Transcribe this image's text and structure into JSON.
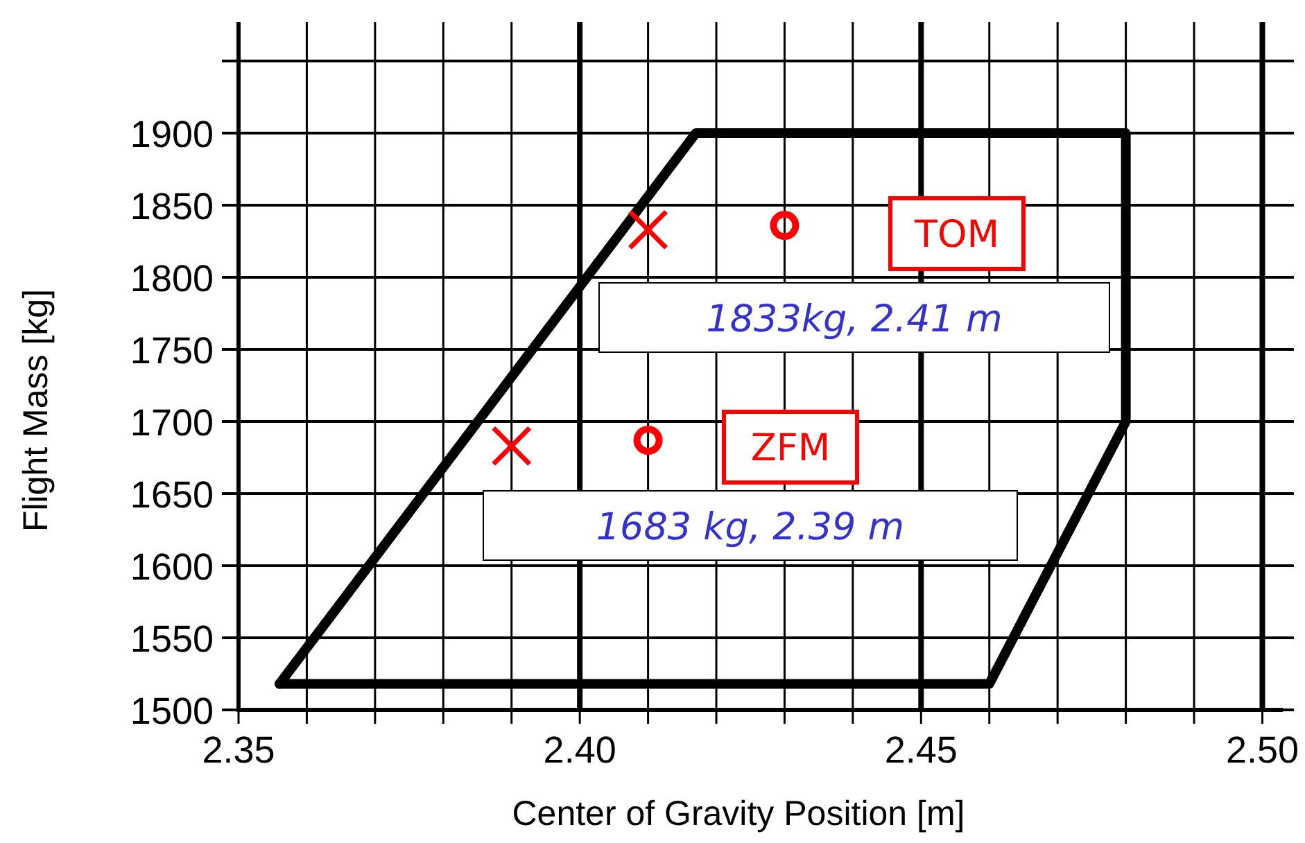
{
  "chart_data": {
    "type": "scatter",
    "xlabel": "Center of Gravity Position [m]",
    "ylabel": "Flight Mass [kg]",
    "xlim": [
      2.35,
      2.503
    ],
    "ylim": [
      1500,
      1950
    ],
    "xticks": [
      2.35,
      {
        "value": 2.36,
        "label": null
      },
      {
        "value": 2.37,
        "label": null
      },
      {
        "value": 2.38,
        "label": null
      },
      {
        "value": 2.39,
        "label": null
      },
      {
        "value": 2.4,
        "label": "2.40"
      },
      {
        "value": 2.41,
        "label": null
      },
      {
        "value": 2.42,
        "label": null
      },
      {
        "value": 2.43,
        "label": null
      },
      {
        "value": 2.44,
        "label": null
      },
      2.45,
      {
        "value": 2.46,
        "label": null
      },
      {
        "value": 2.47,
        "label": null
      },
      {
        "value": 2.48,
        "label": null
      },
      {
        "value": 2.49,
        "label": null
      },
      {
        "value": 2.5,
        "label": "2.50"
      }
    ],
    "yticks": [
      1500,
      1550,
      1600,
      1650,
      1700,
      1750,
      1800,
      1850,
      1900,
      {
        "value": 1950,
        "label": null
      }
    ],
    "grid": true,
    "series": [
      {
        "type": "line",
        "color": "#000000",
        "marker": "none",
        "x": [
          2.356,
          2.417,
          2.48,
          2.48
        ],
        "values": [
          1518,
          1900,
          1900,
          1700
        ]
      },
      {
        "type": "line",
        "color": "#000000",
        "marker": "none",
        "x": [
          2.356,
          2.46,
          2.48
        ],
        "values": [
          1518,
          1518,
          1700
        ]
      },
      {
        "color": "#ff0000",
        "marker": "cross",
        "x": [
          2.41,
          2.39
        ],
        "values": [
          1833,
          1683
        ]
      },
      {
        "color": "#ff0000",
        "marker": "circle",
        "x": [
          2.43,
          2.41
        ],
        "values": [
          1836,
          1687
        ]
      }
    ],
    "annotations": [
      "TOM",
      "1833kg, 2.41 m",
      "ZFM",
      "1683 kg, 2.39 m"
    ]
  }
}
